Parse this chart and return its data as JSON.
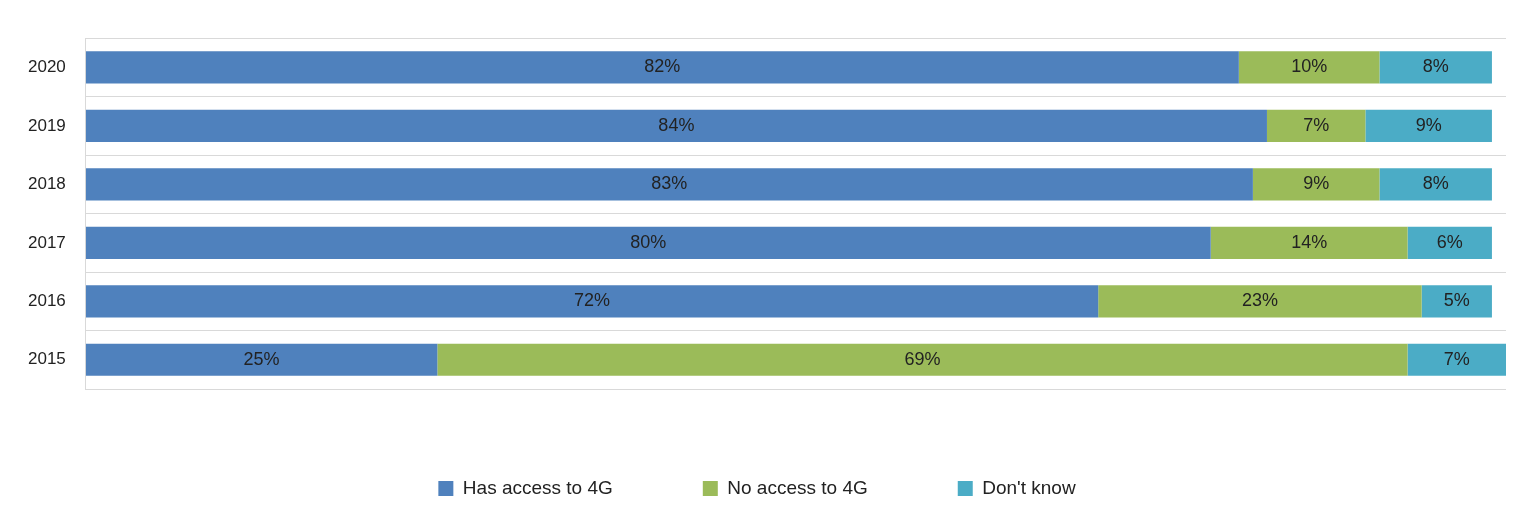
{
  "chart_data": {
    "type": "bar",
    "orientation": "horizontal",
    "stacked": true,
    "categories": [
      "2020",
      "2019",
      "2018",
      "2017",
      "2016",
      "2015"
    ],
    "series": [
      {
        "name": "Has access to 4G",
        "color": "#4f81bd",
        "values": [
          82,
          84,
          83,
          80,
          72,
          25
        ],
        "value_labels": [
          "82%",
          "84%",
          "83%",
          "80%",
          "72%",
          "25%"
        ]
      },
      {
        "name": "No access to 4G",
        "color": "#9bbb59",
        "values": [
          10,
          7,
          9,
          14,
          23,
          69
        ],
        "value_labels": [
          "10%",
          "7%",
          "9%",
          "14%",
          "23%",
          "69%"
        ]
      },
      {
        "name": "Don't know",
        "color": "#4bacc6",
        "values": [
          8,
          9,
          8,
          6,
          5,
          7
        ],
        "value_labels": [
          "8%",
          "9%",
          "8%",
          "6%",
          "5%",
          "7%"
        ]
      }
    ],
    "grid": "y",
    "legend": "bottom",
    "tick_labels": "y"
  }
}
